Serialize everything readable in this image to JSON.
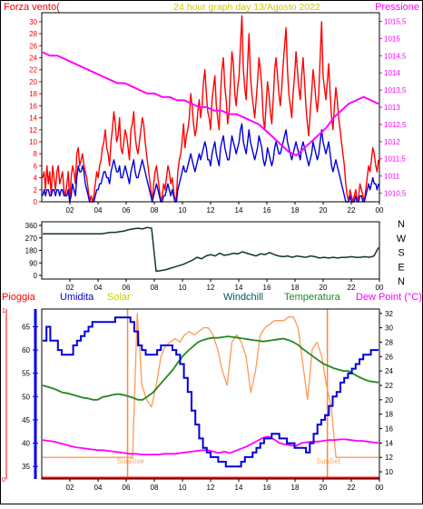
{
  "colors": {
    "red": "#ff0000",
    "blue": "#0000dd",
    "magenta": "#ff00ff",
    "gold": "#cccc00",
    "green": "#228822",
    "teal": "#005566",
    "dark_green": "#113333",
    "orange": "#ff9955",
    "axis": "#000000",
    "sunrise_line": "#ff8844"
  },
  "chart_data": [
    {
      "type": "line",
      "title": "24 hour graph day  13/Agosto 2022",
      "left_axis_label": "Forza vento(",
      "right_axis_label": "Pressione",
      "x_ticks": [
        "02",
        "04",
        "06",
        "08",
        "10",
        "12",
        "14",
        "16",
        "18",
        "20",
        "22",
        "00"
      ],
      "y_left_ticks": [
        "0",
        "2",
        "4",
        "6",
        "8",
        "10",
        "12",
        "14",
        "16",
        "18",
        "20",
        "22",
        "24",
        "26",
        "28",
        "30"
      ],
      "y_left_range": [
        0,
        31.5
      ],
      "y_right_ticks": [
        "1010,5",
        "1011",
        "1011,5",
        "1012",
        "1012,5",
        "1013",
        "1013,5",
        "1014",
        "1014,5",
        "1015",
        "1015,5"
      ],
      "y_right_range": [
        1010.25,
        1015.75
      ],
      "series": [
        {
          "role": "gust",
          "color": "red",
          "values": [
            4,
            5,
            2,
            6,
            3,
            5,
            1,
            6,
            4,
            2,
            5,
            6,
            3,
            4,
            5,
            2,
            1,
            3,
            5,
            0,
            4,
            6,
            5,
            3,
            8,
            9,
            6,
            7,
            8,
            6,
            5,
            4,
            2,
            0,
            1,
            0,
            1,
            3,
            5,
            4,
            6,
            7,
            9,
            10,
            12,
            9,
            8,
            6,
            10,
            12,
            15,
            13,
            10,
            11,
            14,
            9,
            8,
            10,
            12,
            11,
            9,
            7,
            12,
            13,
            15,
            11,
            9,
            8,
            10,
            12,
            14,
            13,
            10,
            8,
            6,
            4,
            2,
            0,
            3,
            5,
            6,
            4,
            2,
            0,
            1,
            3,
            2,
            4,
            6,
            5,
            3,
            4,
            2,
            0,
            1,
            5,
            7,
            8,
            10,
            13,
            9,
            11,
            12,
            14,
            18,
            16,
            13,
            11,
            12,
            15,
            17,
            14,
            16,
            20,
            22,
            18,
            15,
            14,
            12,
            17,
            19,
            21,
            16,
            14,
            12,
            18,
            22,
            24,
            19,
            17,
            13,
            15,
            20,
            25,
            23,
            18,
            16,
            19,
            21,
            26,
            31,
            22,
            19,
            17,
            23,
            28,
            21,
            18,
            16,
            14,
            17,
            20,
            24,
            22,
            19,
            14,
            12,
            16,
            20,
            18,
            15,
            13,
            17,
            22,
            24,
            21,
            18,
            16,
            19,
            23,
            26,
            29,
            22,
            18,
            16,
            14,
            18,
            21,
            25,
            22,
            19,
            17,
            21,
            24,
            20,
            16,
            13,
            11,
            15,
            18,
            22,
            20,
            17,
            15,
            18,
            24,
            30,
            21,
            19,
            17,
            20,
            23,
            18,
            14,
            12,
            16,
            19,
            17,
            14,
            12,
            10,
            8,
            6,
            3,
            1,
            0,
            2,
            1,
            0,
            1,
            2,
            0,
            1,
            3,
            2,
            1,
            0,
            2,
            4,
            6,
            5,
            7,
            9,
            8,
            6,
            5,
            7
          ]
        },
        {
          "role": "wind_avg",
          "color": "blue",
          "values": [
            1,
            2,
            1,
            2,
            2,
            1,
            1,
            2,
            2,
            1,
            2,
            2,
            1,
            2,
            2,
            1,
            1,
            1,
            2,
            0,
            1,
            3,
            2,
            1,
            4,
            6,
            5,
            5,
            6,
            5,
            3,
            2,
            1,
            0,
            0,
            0,
            0,
            1,
            2,
            2,
            3,
            3,
            4,
            5,
            5,
            4,
            4,
            3,
            5,
            6,
            7,
            6,
            5,
            5,
            6,
            4,
            4,
            5,
            6,
            5,
            4,
            3,
            5,
            6,
            7,
            5,
            4,
            4,
            5,
            6,
            7,
            6,
            5,
            4,
            3,
            2,
            1,
            0,
            1,
            2,
            3,
            2,
            1,
            0,
            0,
            1,
            1,
            2,
            3,
            2,
            1,
            2,
            1,
            0,
            0,
            2,
            3,
            4,
            5,
            6,
            5,
            5,
            6,
            7,
            8,
            7,
            6,
            5,
            6,
            7,
            8,
            7,
            8,
            9,
            10,
            9,
            7,
            7,
            6,
            8,
            9,
            10,
            8,
            7,
            6,
            9,
            10,
            11,
            9,
            8,
            7,
            7,
            9,
            11,
            10,
            9,
            8,
            9,
            10,
            12,
            13,
            10,
            9,
            8,
            10,
            12,
            10,
            9,
            8,
            7,
            8,
            9,
            11,
            10,
            9,
            7,
            6,
            7,
            9,
            8,
            7,
            6,
            7,
            9,
            10,
            9,
            8,
            8,
            9,
            10,
            11,
            12,
            10,
            9,
            8,
            7,
            8,
            9,
            10,
            9,
            8,
            7,
            9,
            10,
            9,
            8,
            7,
            6,
            7,
            8,
            10,
            9,
            8,
            7,
            8,
            10,
            12,
            10,
            9,
            8,
            9,
            10,
            8,
            6,
            5,
            6,
            7,
            6,
            5,
            4,
            3,
            2,
            1,
            0,
            0,
            0,
            1,
            0,
            0,
            0,
            1,
            0,
            0,
            1,
            1,
            0,
            0,
            1,
            2,
            3,
            2,
            3,
            4,
            3,
            3,
            2,
            3
          ]
        },
        {
          "role": "pressure",
          "color": "magenta",
          "axis": "right",
          "values": [
            1014.6,
            1014.5,
            1014.5,
            1014.4,
            1014.3,
            1014.2,
            1014.1,
            1014.0,
            1013.9,
            1013.8,
            1013.7,
            1013.7,
            1013.6,
            1013.5,
            1013.4,
            1013.4,
            1013.3,
            1013.3,
            1013.2,
            1013.2,
            1013.1,
            1013.0,
            1013.0,
            1012.9,
            1012.9,
            1012.8,
            1012.8,
            1012.7,
            1012.6,
            1012.5,
            1012.3,
            1012.1,
            1011.9,
            1011.7,
            1011.6,
            1011.8,
            1012.0,
            1012.2,
            1012.4,
            1012.7,
            1012.9,
            1013.1,
            1013.2,
            1013.3,
            1013.2,
            1013.1
          ]
        }
      ]
    },
    {
      "type": "line",
      "title": "",
      "x_ticks": [
        "02",
        "04",
        "06",
        "08",
        "10",
        "12",
        "14",
        "16",
        "18",
        "20",
        "22",
        "00"
      ],
      "y_left_ticks": [
        "0",
        "90",
        "180",
        "270",
        "360"
      ],
      "y_left_range": [
        0,
        360
      ],
      "y_right_ticks": [
        "N",
        "W",
        "S",
        "E",
        "N"
      ],
      "series": [
        {
          "role": "wind_direction",
          "color": "dark_green",
          "values": [
            300,
            300,
            300,
            300,
            300,
            300,
            300,
            300,
            300,
            300,
            300,
            300,
            300,
            300,
            305,
            310,
            310,
            315,
            320,
            330,
            335,
            340,
            335,
            345,
            340,
            30,
            35,
            40,
            50,
            60,
            70,
            80,
            95,
            110,
            130,
            120,
            140,
            150,
            140,
            160,
            145,
            150,
            160,
            155,
            170,
            160,
            150,
            140,
            155,
            150,
            165,
            150,
            140,
            135,
            140,
            130,
            140,
            135,
            130,
            140,
            135,
            125,
            130,
            125,
            130,
            125,
            130,
            130,
            135,
            130,
            130,
            135,
            130,
            140,
            200
          ]
        }
      ]
    },
    {
      "type": "line",
      "title": "",
      "labels_row": {
        "rain": "Pioggia",
        "humidity": "Umidita",
        "solar": "Solar",
        "windchill": "Windchill",
        "temperature": "Temperatura",
        "dewpoint": "Dew Point (°C)"
      },
      "x_ticks": [
        "02",
        "04",
        "06",
        "08",
        "10",
        "12",
        "14",
        "16",
        "18",
        "20",
        "22",
        "00"
      ],
      "y_left_ticks": [
        "35",
        "40",
        "45",
        "50",
        "55",
        "60",
        "65"
      ],
      "y_left_range": [
        32.3,
        68.8
      ],
      "y_right_ticks": [
        "10",
        "12",
        "14",
        "16",
        "18",
        "20",
        "22",
        "24",
        "26",
        "28",
        "30",
        "32"
      ],
      "y_right_range": [
        9,
        32.6
      ],
      "rain_axis_ticks": [
        "0",
        "1"
      ],
      "annotations": {
        "sunrise": "SunRise",
        "sunset": "SunSet"
      },
      "sunrise_hour": 6.1,
      "sunset_hour": 20.3,
      "series": [
        {
          "role": "humidity",
          "color": "blue",
          "values": [
            62,
            65,
            62,
            62,
            60,
            59,
            59,
            59,
            61,
            62,
            63,
            64,
            65,
            66,
            66,
            66,
            66,
            66,
            66,
            67,
            67,
            67,
            67,
            66,
            64,
            61,
            60,
            59,
            59,
            59,
            60,
            61,
            61,
            61,
            60,
            59,
            57,
            54,
            51,
            47,
            44,
            41,
            39,
            38,
            37,
            37,
            36,
            36,
            35,
            35,
            35,
            35,
            36,
            37,
            37,
            38,
            39,
            40,
            41,
            41,
            42,
            42,
            41,
            41,
            40,
            40,
            39,
            39,
            39,
            38,
            40,
            42,
            44,
            45,
            46,
            48,
            50,
            51,
            53,
            54,
            55,
            56,
            57,
            58,
            59,
            59,
            60,
            60,
            60
          ]
        },
        {
          "role": "temperature",
          "color": "green",
          "axis": "right",
          "values": [
            22.0,
            21.8,
            21.6,
            21.3,
            21.0,
            20.9,
            20.7,
            20.5,
            20.3,
            20.2,
            20.0,
            20.0,
            20.4,
            20.5,
            20.7,
            20.8,
            20.7,
            20.5,
            20.3,
            20.0,
            20.0,
            20.5,
            21.0,
            21.8,
            22.6,
            23.4,
            24.2,
            25.2,
            26.1,
            26.8,
            27.4,
            28.0,
            28.3,
            28.5,
            28.6,
            28.6,
            28.7,
            28.8,
            28.7,
            28.6,
            28.5,
            28.4,
            28.3,
            28.2,
            28.1,
            28.2,
            28.3,
            28.4,
            28.5,
            28.3,
            28.0,
            27.6,
            27.0,
            26.5,
            26.0,
            25.5,
            25.0,
            24.7,
            24.4,
            24.2,
            24.0,
            24.0,
            23.6,
            23.2,
            22.9,
            22.6,
            22.5,
            22.4
          ]
        },
        {
          "role": "solar",
          "color": "orange",
          "axis": "right",
          "values": [
            12.0,
            12.0,
            12.0,
            12.0,
            12.0,
            12.0,
            12.0,
            12.0,
            12.0,
            12.0,
            12.0,
            12.0,
            12.0,
            12.0,
            12.0,
            12.0,
            12.0,
            12.0,
            12.0,
            12.0,
            32.0,
            22.0,
            20.0,
            19.0,
            22.0,
            26.0,
            27.5,
            28.0,
            28.5,
            28.0,
            29.0,
            29.5,
            29.0,
            29.5,
            30.0,
            30.0,
            29.0,
            27.0,
            24.0,
            22.0,
            28.0,
            29.0,
            28.0,
            26.0,
            21.0,
            24.0,
            29.0,
            30.0,
            30.5,
            31.0,
            31.0,
            31.0,
            31.5,
            31.5,
            30.0,
            25.0,
            20.0,
            27.0,
            28.0,
            26.0,
            22.0,
            19.0,
            12.0,
            12.0,
            12.0,
            12.0,
            12.0,
            12.0,
            12.0,
            12.0,
            12.0,
            12.0
          ]
        },
        {
          "role": "dewpoint",
          "color": "magenta",
          "axis": "right",
          "values": [
            14.4,
            14.3,
            14.2,
            14.0,
            13.8,
            13.6,
            13.4,
            13.3,
            13.2,
            13.1,
            13.0,
            13.0,
            12.9,
            12.8,
            12.7,
            12.6,
            12.5,
            12.5,
            12.4,
            12.4,
            12.4,
            12.4,
            12.5,
            12.5,
            12.5,
            12.6,
            12.7,
            12.8,
            12.9,
            13.0,
            13.0,
            12.8,
            12.6,
            12.8,
            12.6,
            12.9,
            13.2,
            13.5,
            13.9,
            14.3,
            14.7,
            14.9,
            14.5,
            14.0,
            13.8,
            13.7,
            13.6,
            14.0,
            14.1,
            14.2,
            14.2,
            14.3,
            14.4,
            14.4,
            14.5,
            14.5,
            14.4,
            14.3,
            14.3,
            14.2,
            14.1,
            14.0
          ]
        }
      ]
    }
  ]
}
